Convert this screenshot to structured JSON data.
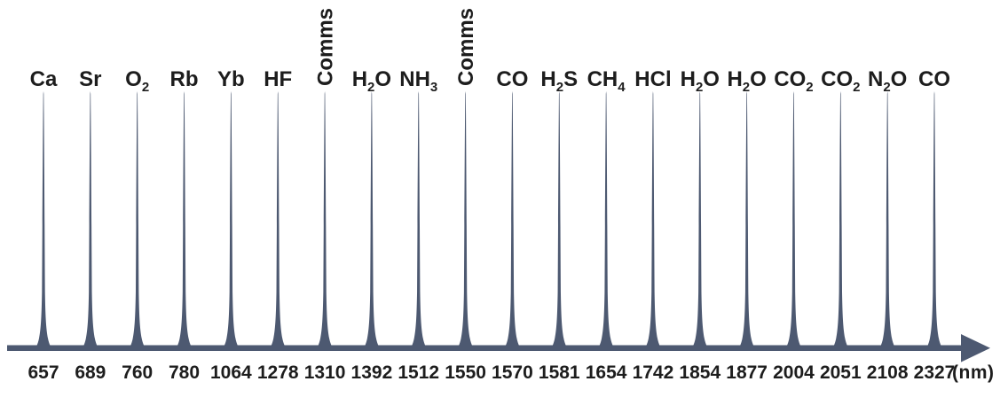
{
  "figure": {
    "units_label": "(nm)",
    "colors": {
      "peak": "#4d5971",
      "axis": "#4d5971",
      "text": "#1d1d1d",
      "background": "#ffffff"
    },
    "peaks": [
      {
        "label": "Ca",
        "wavelength_nm": "657",
        "rotated": false
      },
      {
        "label": "Sr",
        "wavelength_nm": "689",
        "rotated": false
      },
      {
        "label": "O2",
        "wavelength_nm": "760",
        "rotated": false
      },
      {
        "label": "Rb",
        "wavelength_nm": "780",
        "rotated": false
      },
      {
        "label": "Yb",
        "wavelength_nm": "1064",
        "rotated": false
      },
      {
        "label": "HF",
        "wavelength_nm": "1278",
        "rotated": false
      },
      {
        "label": "Comms",
        "wavelength_nm": "1310",
        "rotated": true
      },
      {
        "label": "H2O",
        "wavelength_nm": "1392",
        "rotated": false
      },
      {
        "label": "NH3",
        "wavelength_nm": "1512",
        "rotated": false
      },
      {
        "label": "Comms",
        "wavelength_nm": "1550",
        "rotated": true
      },
      {
        "label": "CO",
        "wavelength_nm": "1570",
        "rotated": false
      },
      {
        "label": "H2S",
        "wavelength_nm": "1581",
        "rotated": false
      },
      {
        "label": "CH4",
        "wavelength_nm": "1654",
        "rotated": false
      },
      {
        "label": "HCl",
        "wavelength_nm": "1742",
        "rotated": false
      },
      {
        "label": "H2O",
        "wavelength_nm": "1854",
        "rotated": false
      },
      {
        "label": "H2O",
        "wavelength_nm": "1877",
        "rotated": false
      },
      {
        "label": "CO2",
        "wavelength_nm": "2004",
        "rotated": false
      },
      {
        "label": "CO2",
        "wavelength_nm": "2051",
        "rotated": false
      },
      {
        "label": "N2O",
        "wavelength_nm": "2108",
        "rotated": false
      },
      {
        "label": "CO",
        "wavelength_nm": "2327",
        "rotated": false
      }
    ]
  },
  "chart_data": {
    "type": "line",
    "title": "",
    "xlabel": "(nm)",
    "x": [
      657,
      689,
      760,
      780,
      1064,
      1278,
      1310,
      1392,
      1512,
      1550,
      1570,
      1581,
      1654,
      1742,
      1854,
      1877,
      2004,
      2051,
      2108,
      2327
    ],
    "peak_labels": [
      "Ca",
      "Sr",
      "O2",
      "Rb",
      "Yb",
      "HF",
      "Comms",
      "H2O",
      "NH3",
      "Comms",
      "CO",
      "H2S",
      "CH4",
      "HCl",
      "H2O",
      "H2O",
      "CO2",
      "CO2",
      "N2O",
      "CO"
    ],
    "peak_height": 1,
    "layout": "peaks drawn evenly spaced, axis not to numeric scale, arrow at right end"
  }
}
